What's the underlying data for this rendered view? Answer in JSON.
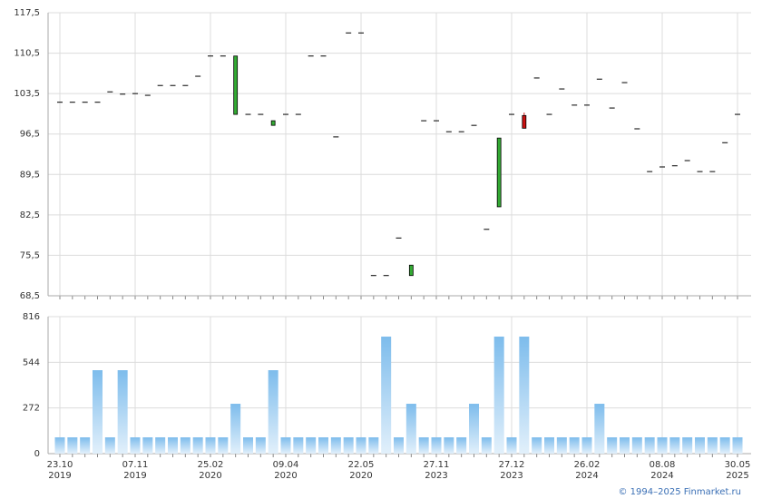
{
  "chart_data": {
    "type": "candlestick",
    "categories": [
      "23.10",
      null,
      null,
      null,
      null,
      null,
      "07.11",
      null,
      null,
      null,
      null,
      null,
      "25.02",
      null,
      null,
      null,
      null,
      null,
      "09.04",
      null,
      null,
      null,
      null,
      null,
      "22.05",
      null,
      null,
      null,
      null,
      null,
      "27.11",
      null,
      null,
      null,
      null,
      null,
      "27.12",
      null,
      null,
      null,
      null,
      null,
      "26.02",
      null,
      null,
      null,
      null,
      null,
      "08.08",
      null,
      null,
      null,
      null,
      null,
      "30.05"
    ],
    "category_years": [
      "2019",
      null,
      null,
      null,
      null,
      null,
      "2019",
      null,
      null,
      null,
      null,
      null,
      "2020",
      null,
      null,
      null,
      null,
      null,
      "2020",
      null,
      null,
      null,
      null,
      null,
      "2020",
      null,
      null,
      null,
      null,
      null,
      "2023",
      null,
      null,
      null,
      null,
      null,
      "2023",
      null,
      null,
      null,
      null,
      null,
      "2024",
      null,
      null,
      null,
      null,
      null,
      "2024",
      null,
      null,
      null,
      null,
      null,
      "2025"
    ],
    "open": [
      102.0,
      102.0,
      102.0,
      102.0,
      103.8,
      103.4,
      103.5,
      103.2,
      104.9,
      104.9,
      104.9,
      106.5,
      110.0,
      110.0,
      99.9,
      99.9,
      99.9,
      98.0,
      99.9,
      99.9,
      110.0,
      110.0,
      96.0,
      114.0,
      114.0,
      72.0,
      72.0,
      78.5,
      72.0,
      98.8,
      98.8,
      96.9,
      96.9,
      98.0,
      80.0,
      83.9,
      99.9,
      99.7,
      106.2,
      99.9,
      104.3,
      101.5,
      101.5,
      106.0,
      101.0,
      105.4,
      97.4,
      90.0,
      90.8,
      91.0,
      91.9,
      90.0,
      90.0,
      95.0,
      99.9
    ],
    "high": [
      102.0,
      102.0,
      102.0,
      102.0,
      103.8,
      103.4,
      103.5,
      103.2,
      104.9,
      104.9,
      104.9,
      106.5,
      110.0,
      110.0,
      110.0,
      99.9,
      99.9,
      98.8,
      99.9,
      99.9,
      110.0,
      110.0,
      96.0,
      114.0,
      114.0,
      72.0,
      72.0,
      78.5,
      73.8,
      98.8,
      98.8,
      96.9,
      96.9,
      98.0,
      80.0,
      95.8,
      99.9,
      100.2,
      106.2,
      99.9,
      104.3,
      101.5,
      101.5,
      106.0,
      101.0,
      105.4,
      97.4,
      90.0,
      90.8,
      91.0,
      91.9,
      90.0,
      90.0,
      95.0,
      99.9
    ],
    "low": [
      102.0,
      102.0,
      102.0,
      102.0,
      103.8,
      103.4,
      103.5,
      103.2,
      104.9,
      104.9,
      104.9,
      106.5,
      110.0,
      110.0,
      99.9,
      99.9,
      99.9,
      98.0,
      99.9,
      99.9,
      110.0,
      110.0,
      96.0,
      114.0,
      114.0,
      72.0,
      72.0,
      78.5,
      72.0,
      98.8,
      98.8,
      96.9,
      96.9,
      98.0,
      80.0,
      83.9,
      99.9,
      97.5,
      106.2,
      99.9,
      104.3,
      101.5,
      101.5,
      106.0,
      101.0,
      105.4,
      97.4,
      90.0,
      90.8,
      91.0,
      91.9,
      90.0,
      90.0,
      95.0,
      99.9
    ],
    "close": [
      102.0,
      102.0,
      102.0,
      102.0,
      103.8,
      103.4,
      103.5,
      103.2,
      104.9,
      104.9,
      104.9,
      106.5,
      110.0,
      110.0,
      110.0,
      99.9,
      99.9,
      98.8,
      99.9,
      99.9,
      110.0,
      110.0,
      96.0,
      114.0,
      114.0,
      72.0,
      72.0,
      78.5,
      73.8,
      98.8,
      98.8,
      96.9,
      96.9,
      98.0,
      80.0,
      95.8,
      99.9,
      97.5,
      106.2,
      99.9,
      104.3,
      101.5,
      101.5,
      106.0,
      101.0,
      105.4,
      97.4,
      90.0,
      90.8,
      91.0,
      91.9,
      90.0,
      90.0,
      95.0,
      99.9
    ],
    "up_color": "#33aa33",
    "down_color": "#cc1111",
    "ylim": [
      68.5,
      117.5
    ],
    "yticks": [
      {
        "value": 68.5,
        "label": "68,5"
      },
      {
        "value": 75.5,
        "label": "75,5"
      },
      {
        "value": 82.5,
        "label": "82,5"
      },
      {
        "value": 89.5,
        "label": "89,5"
      },
      {
        "value": 96.5,
        "label": "96,5"
      },
      {
        "value": 103.5,
        "label": "103,5"
      },
      {
        "value": 110.5,
        "label": "110,5"
      },
      {
        "value": 117.5,
        "label": "117,5"
      }
    ],
    "grid": true,
    "volume": {
      "type": "bar",
      "values": [
        97,
        97,
        97,
        497,
        97,
        497,
        97,
        97,
        97,
        97,
        97,
        97,
        97,
        97,
        297,
        97,
        97,
        497,
        97,
        97,
        97,
        97,
        97,
        97,
        97,
        97,
        697,
        97,
        297,
        97,
        97,
        97,
        97,
        297,
        97,
        697,
        97,
        697,
        97,
        97,
        97,
        97,
        97,
        297,
        97,
        97,
        97,
        97,
        97,
        97,
        97,
        97,
        97,
        97,
        97
      ],
      "color": "#7dbcec",
      "ylim": [
        0,
        816
      ],
      "yticks": [
        0,
        272,
        544,
        816
      ]
    },
    "credit": "© 1994–2025 Finmarket.ru"
  }
}
